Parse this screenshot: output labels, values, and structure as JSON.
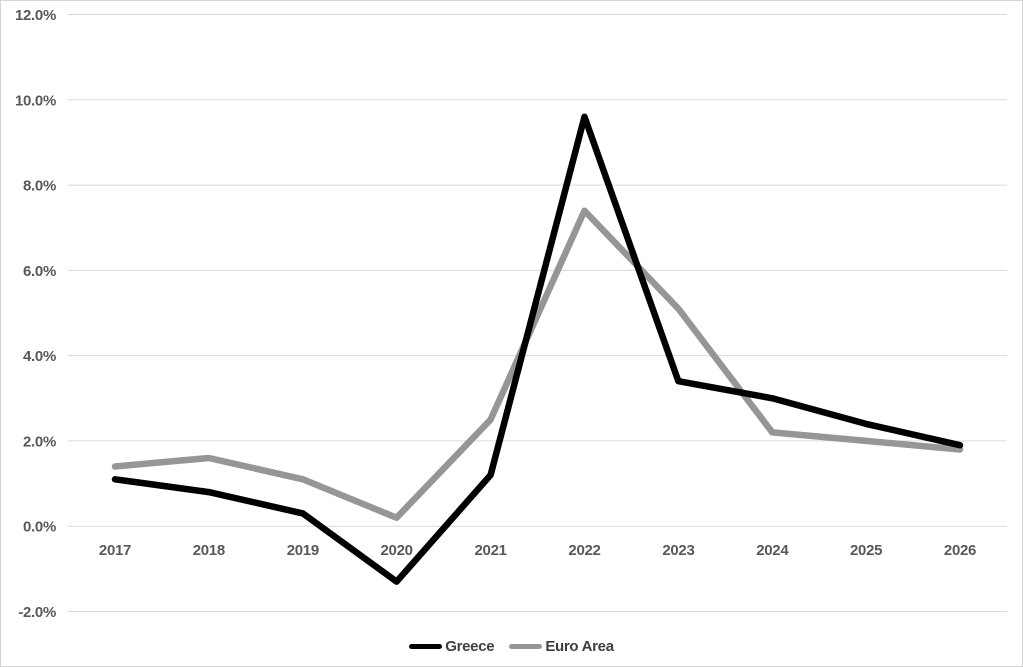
{
  "chart_data": {
    "type": "line",
    "title": "",
    "xlabel": "",
    "ylabel": "",
    "categories": [
      "2017",
      "2018",
      "2019",
      "2020",
      "2021",
      "2022",
      "2023",
      "2024",
      "2025",
      "2026"
    ],
    "series": [
      {
        "name": "Greece",
        "color": "#000000",
        "values": [
          1.1,
          0.8,
          0.3,
          -1.3,
          1.2,
          9.6,
          3.4,
          3.0,
          2.4,
          1.9
        ]
      },
      {
        "name": "Euro Area",
        "color": "#969696",
        "values": [
          1.4,
          1.6,
          1.1,
          0.2,
          2.5,
          7.4,
          5.1,
          2.2,
          2.0,
          1.8
        ]
      }
    ],
    "ylim": [
      -2,
      12
    ],
    "ytick_step": 2,
    "ytick_labels": [
      "-2.0%",
      "0.0%",
      "2.0%",
      "4.0%",
      "6.0%",
      "8.0%",
      "10.0%",
      "12.0%"
    ],
    "grid": "horizontal",
    "legend_position": "bottom-center"
  },
  "styles": {
    "background": "#ffffff",
    "border": "#d4d4d4",
    "gridline": "#dadada",
    "axis_text": "#595959",
    "legend_text": "#3f3f3f"
  }
}
